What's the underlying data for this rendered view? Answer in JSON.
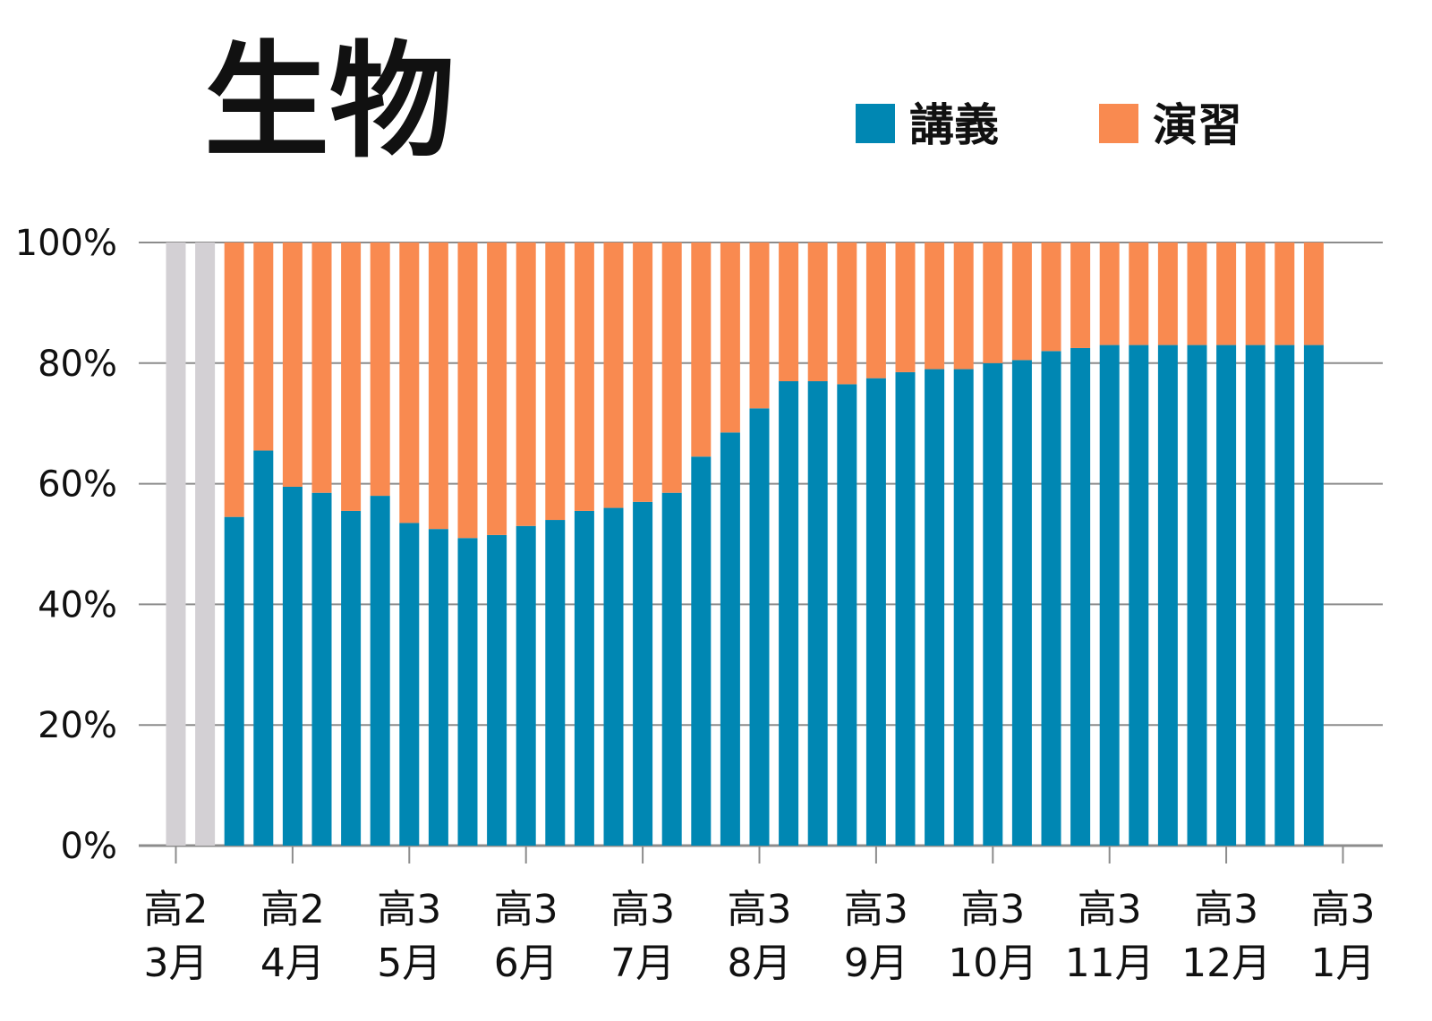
{
  "chart_data": {
    "type": "bar",
    "stacked": true,
    "title": "生物",
    "series": [
      {
        "name": "講義",
        "color": "#0087b3",
        "values": [
          null,
          null,
          54.5,
          65.5,
          59.5,
          58.5,
          55.5,
          58,
          53.5,
          52.5,
          51,
          51.5,
          53,
          54,
          55.5,
          56,
          57,
          58.5,
          64.5,
          68.5,
          72.5,
          77,
          77,
          76.5,
          77.5,
          78.5,
          79,
          79,
          80,
          80.5,
          82,
          82.5,
          83,
          83,
          83,
          83,
          83,
          83,
          83,
          83
        ]
      },
      {
        "name": "演習",
        "color": "#f98a50",
        "values": [
          null,
          null,
          45.5,
          34.5,
          40.5,
          41.5,
          44.5,
          42,
          46.5,
          47.5,
          49,
          48.5,
          47,
          46,
          44.5,
          44,
          43,
          41.5,
          35.5,
          31.5,
          27.5,
          23,
          23,
          23.5,
          22.5,
          21.5,
          21,
          21,
          20,
          19.5,
          18,
          17.5,
          17,
          17,
          17,
          17,
          17,
          17,
          17,
          17
        ]
      }
    ],
    "inactive_bars": [
      0,
      1
    ],
    "inactive_color": "#d3d0d4",
    "ylim": [
      0,
      100
    ],
    "yticks": [
      "0%",
      "20%",
      "40%",
      "60%",
      "80%",
      "100%"
    ],
    "xticks": [
      {
        "line1": "高2",
        "line2": "3月",
        "bar": 0
      },
      {
        "line1": "高2",
        "line2": "4月",
        "bar": 4
      },
      {
        "line1": "高3",
        "line2": "5月",
        "bar": 8
      },
      {
        "line1": "高3",
        "line2": "6月",
        "bar": 12
      },
      {
        "line1": "高3",
        "line2": "7月",
        "bar": 16
      },
      {
        "line1": "高3",
        "line2": "8月",
        "bar": 20
      },
      {
        "line1": "高3",
        "line2": "9月",
        "bar": 24
      },
      {
        "line1": "高3",
        "line2": "10月",
        "bar": 28
      },
      {
        "line1": "高3",
        "line2": "11月",
        "bar": 32
      },
      {
        "line1": "高3",
        "line2": "12月",
        "bar": 36
      },
      {
        "line1": "高3",
        "line2": "1月",
        "bar": 40
      }
    ],
    "legend_position": "top-right",
    "grid": true,
    "gridline_color": "#8c8c8c"
  }
}
